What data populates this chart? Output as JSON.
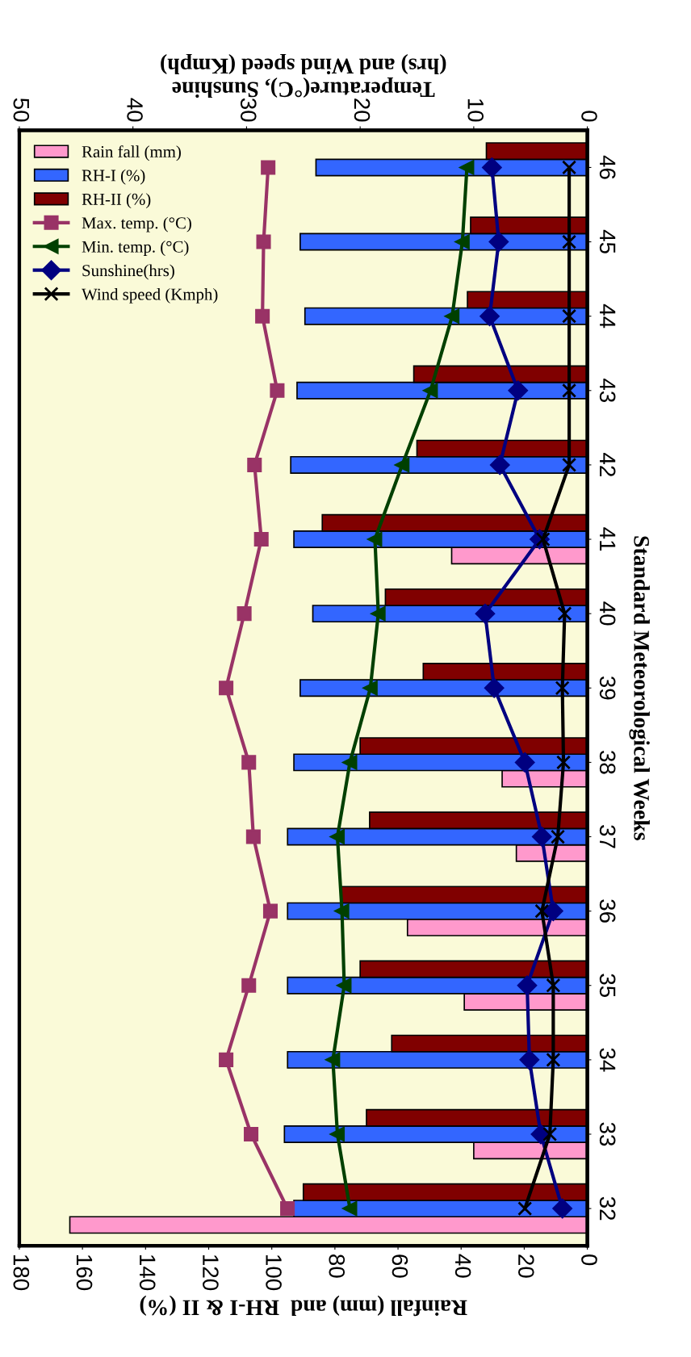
{
  "chart_data": {
    "type": "bar",
    "orientation": "horizontal",
    "xlabel": "Rainfall (mm) and  RH-I & II (%)",
    "x2label": "Temperature(°C), Sunshine\n(hrs) and Wind speed (Kmph)",
    "ylabel": "Standard Meteorological Weeks",
    "categories": [
      "46",
      "45",
      "44",
      "43",
      "42",
      "41",
      "40",
      "39",
      "38",
      "37",
      "36",
      "35",
      "34",
      "33",
      "32"
    ],
    "xlim": [
      180,
      0
    ],
    "xticks": [
      0,
      20,
      40,
      60,
      80,
      100,
      120,
      140,
      160,
      180
    ],
    "x2lim": [
      50,
      0
    ],
    "x2ticks": [
      0,
      10,
      20,
      30,
      40,
      50
    ],
    "grid": false,
    "legend": "top left",
    "series": [
      {
        "name": "Rain fall (mm)",
        "color": "#ff99cc",
        "values": [
          null,
          null,
          null,
          null,
          null,
          43,
          null,
          null,
          27,
          22.5,
          57,
          39,
          null,
          36,
          164
        ]
      },
      {
        "name": "RH-I (%)",
        "color": "#3366ff",
        "values": [
          86,
          91,
          89.5,
          92,
          94,
          93,
          87,
          91,
          93,
          95,
          95,
          95,
          95,
          96,
          93
        ]
      },
      {
        "name": "RH-II (%)",
        "color": "#800000",
        "values": [
          32,
          37,
          38,
          55,
          54,
          84,
          64,
          52,
          72,
          69,
          78,
          72,
          62,
          70,
          90
        ]
      },
      {
        "name": "Max. temp. (°C)",
        "type": "line",
        "axis": "x2",
        "marker": "square",
        "color": "#993366",
        "values": [
          28.1,
          28.5,
          28.6,
          27.3,
          29.3,
          28.7,
          30.2,
          31.8,
          29.8,
          29.4,
          27.9,
          29.8,
          31.8,
          29.6,
          26.4
        ]
      },
      {
        "name": "Min. temp. (°C)",
        "type": "line",
        "axis": "x2",
        "marker": "triangle",
        "color": "#004000",
        "values": [
          10.6,
          11.0,
          11.9,
          13.8,
          16.3,
          18.7,
          18.4,
          19.1,
          20.9,
          22.0,
          21.6,
          21.4,
          22.4,
          22.0,
          20.9
        ]
      },
      {
        "name": "Sunshine(hrs)",
        "type": "line",
        "axis": "x2",
        "marker": "diamond",
        "color": "#000080",
        "values": [
          8.4,
          7.8,
          8.6,
          6.1,
          7.7,
          4.2,
          9.0,
          8.2,
          5.5,
          4.0,
          3.0,
          5.3,
          5.1,
          4.1,
          2.2
        ]
      },
      {
        "name": "Wind speed (Kmph)",
        "type": "line",
        "axis": "x2",
        "marker": "cross",
        "color": "#000000",
        "values": [
          1.6,
          1.6,
          1.6,
          1.6,
          1.6,
          3.9,
          2.0,
          2.2,
          2.1,
          2.6,
          4.0,
          3.0,
          3.0,
          3.3,
          5.5
        ]
      }
    ]
  }
}
